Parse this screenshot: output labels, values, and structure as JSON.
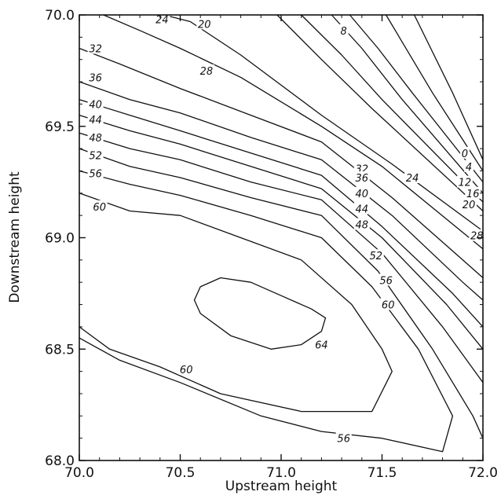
{
  "chart_data": {
    "type": "contour",
    "title": "",
    "xlabel": "Upstream height",
    "ylabel": "Downstream height",
    "xlim": [
      70.0,
      72.0
    ],
    "ylim": [
      68.0,
      70.0
    ],
    "x_ticks": [
      "70.0",
      "70.5",
      "71.0",
      "71.5",
      "72.0"
    ],
    "y_ticks": [
      "68.0",
      "68.5",
      "69.0",
      "69.5",
      "70.0"
    ],
    "grid": false,
    "contour_interval": 4,
    "contours": [
      {
        "level": 0,
        "points": [
          [
            71.66,
            70.0
          ],
          [
            71.85,
            69.65
          ],
          [
            72.0,
            69.35
          ]
        ]
      },
      {
        "level": 4,
        "points": [
          [
            71.52,
            70.0
          ],
          [
            71.75,
            69.65
          ],
          [
            72.0,
            69.3
          ]
        ]
      },
      {
        "level": 8,
        "points": [
          [
            71.34,
            70.0
          ],
          [
            71.48,
            69.85
          ],
          [
            71.65,
            69.65
          ],
          [
            72.0,
            69.25
          ]
        ]
      },
      {
        "level": 12,
        "points": [
          [
            71.25,
            70.0
          ],
          [
            71.4,
            69.85
          ],
          [
            71.6,
            69.62
          ],
          [
            72.0,
            69.2
          ]
        ]
      },
      {
        "level": 16,
        "points": [
          [
            71.1,
            70.0
          ],
          [
            71.3,
            69.82
          ],
          [
            71.5,
            69.62
          ],
          [
            72.0,
            69.16
          ]
        ]
      },
      {
        "level": 20,
        "points": [
          [
            70.98,
            70.0
          ],
          [
            71.2,
            69.8
          ],
          [
            71.45,
            69.58
          ],
          [
            72.0,
            69.12
          ]
        ]
      },
      {
        "level": 24,
        "points": [
          [
            70.42,
            70.0
          ],
          [
            70.55,
            69.97
          ],
          [
            70.8,
            69.82
          ],
          [
            71.2,
            69.55
          ],
          [
            71.55,
            69.33
          ],
          [
            72.0,
            69.03
          ]
        ]
      },
      {
        "level": 28,
        "points": [
          [
            70.12,
            70.0
          ],
          [
            70.3,
            69.93
          ],
          [
            70.5,
            69.85
          ],
          [
            70.8,
            69.72
          ],
          [
            71.2,
            69.5
          ],
          [
            71.5,
            69.32
          ],
          [
            72.0,
            68.95
          ]
        ]
      },
      {
        "level": 32,
        "points": [
          [
            70.0,
            69.85
          ],
          [
            70.2,
            69.78
          ],
          [
            70.5,
            69.67
          ],
          [
            70.85,
            69.55
          ],
          [
            71.2,
            69.43
          ],
          [
            71.55,
            69.18
          ],
          [
            71.9,
            68.9
          ],
          [
            72.0,
            68.82
          ]
        ]
      },
      {
        "level": 36,
        "points": [
          [
            70.0,
            69.7
          ],
          [
            70.25,
            69.62
          ],
          [
            70.5,
            69.56
          ],
          [
            70.85,
            69.45
          ],
          [
            71.2,
            69.35
          ],
          [
            71.55,
            69.1
          ],
          [
            71.9,
            68.8
          ],
          [
            72.0,
            68.72
          ]
        ]
      },
      {
        "level": 40,
        "points": [
          [
            70.0,
            69.62
          ],
          [
            70.25,
            69.55
          ],
          [
            70.5,
            69.48
          ],
          [
            70.85,
            69.38
          ],
          [
            71.2,
            69.28
          ],
          [
            71.5,
            69.05
          ],
          [
            71.85,
            68.75
          ],
          [
            72.0,
            68.6
          ]
        ]
      },
      {
        "level": 44,
        "points": [
          [
            70.0,
            69.55
          ],
          [
            70.25,
            69.48
          ],
          [
            70.5,
            69.42
          ],
          [
            70.85,
            69.32
          ],
          [
            71.2,
            69.22
          ],
          [
            71.5,
            69.0
          ],
          [
            71.82,
            68.7
          ],
          [
            72.0,
            68.5
          ]
        ]
      },
      {
        "level": 48,
        "points": [
          [
            70.0,
            69.47
          ],
          [
            70.25,
            69.4
          ],
          [
            70.5,
            69.35
          ],
          [
            70.85,
            69.25
          ],
          [
            71.2,
            69.17
          ],
          [
            71.5,
            68.93
          ],
          [
            71.8,
            68.6
          ],
          [
            72.0,
            68.35
          ]
        ]
      },
      {
        "level": 52,
        "points": [
          [
            70.0,
            69.4
          ],
          [
            70.25,
            69.32
          ],
          [
            70.5,
            69.27
          ],
          [
            70.85,
            69.18
          ],
          [
            71.2,
            69.1
          ],
          [
            71.48,
            68.85
          ],
          [
            71.75,
            68.5
          ],
          [
            71.95,
            68.2
          ],
          [
            72.0,
            68.1
          ]
        ]
      },
      {
        "level": 56,
        "points": [
          [
            70.0,
            69.3
          ],
          [
            70.25,
            69.24
          ],
          [
            70.5,
            69.19
          ],
          [
            70.85,
            69.1
          ],
          [
            71.2,
            69.0
          ],
          [
            71.45,
            68.78
          ],
          [
            71.68,
            68.5
          ],
          [
            71.85,
            68.2
          ],
          [
            71.8,
            68.04
          ],
          [
            71.5,
            68.1
          ],
          [
            71.2,
            68.13
          ],
          [
            70.9,
            68.2
          ],
          [
            70.5,
            68.35
          ],
          [
            70.2,
            68.45
          ],
          [
            70.0,
            68.55
          ]
        ]
      },
      {
        "level": 60,
        "points": [
          [
            70.0,
            69.2
          ],
          [
            70.25,
            69.12
          ],
          [
            70.5,
            69.1
          ],
          [
            70.8,
            69.0
          ],
          [
            71.1,
            68.9
          ],
          [
            71.35,
            68.7
          ],
          [
            71.5,
            68.5
          ],
          [
            71.55,
            68.4
          ],
          [
            71.45,
            68.22
          ],
          [
            71.1,
            68.22
          ],
          [
            70.7,
            68.3
          ],
          [
            70.4,
            68.42
          ],
          [
            70.15,
            68.5
          ],
          [
            70.0,
            68.6
          ]
        ]
      },
      {
        "level": 64,
        "points": [
          [
            70.57,
            68.72
          ],
          [
            70.6,
            68.78
          ],
          [
            70.7,
            68.82
          ],
          [
            70.85,
            68.8
          ],
          [
            71.0,
            68.74
          ],
          [
            71.15,
            68.68
          ],
          [
            71.22,
            68.64
          ],
          [
            71.2,
            68.58
          ],
          [
            71.1,
            68.52
          ],
          [
            70.95,
            68.5
          ],
          [
            70.75,
            68.56
          ],
          [
            70.6,
            68.66
          ],
          [
            70.57,
            68.72
          ]
        ],
        "closed": true
      },
      {
        "level": 0,
        "points": [
          [
            70.0,
            69.0
          ],
          [
            70.2,
            68.97
          ],
          [
            70.4,
            68.98
          ],
          [
            70.6,
            69.0
          ],
          [
            70.85,
            68.93
          ],
          [
            71.1,
            68.8
          ],
          [
            71.3,
            68.62
          ],
          [
            71.45,
            68.38
          ],
          [
            71.3,
            68.3
          ],
          [
            71.0,
            68.3
          ],
          [
            70.7,
            68.36
          ],
          [
            70.4,
            68.45
          ],
          [
            70.15,
            68.52
          ],
          [
            70.0,
            68.58
          ]
        ],
        "hidden": true
      }
    ],
    "labels": [
      {
        "text": "24",
        "x": 70.41,
        "y": 69.98
      },
      {
        "text": "20",
        "x": 70.62,
        "y": 69.96
      },
      {
        "text": "8",
        "x": 71.31,
        "y": 69.93
      },
      {
        "text": "32",
        "x": 70.08,
        "y": 69.85
      },
      {
        "text": "28",
        "x": 70.63,
        "y": 69.75
      },
      {
        "text": "36",
        "x": 70.08,
        "y": 69.72
      },
      {
        "text": "40",
        "x": 70.08,
        "y": 69.6
      },
      {
        "text": "44",
        "x": 70.08,
        "y": 69.53
      },
      {
        "text": "48",
        "x": 70.08,
        "y": 69.45
      },
      {
        "text": "52",
        "x": 70.08,
        "y": 69.37
      },
      {
        "text": "56",
        "x": 70.08,
        "y": 69.29
      },
      {
        "text": "60",
        "x": 70.1,
        "y": 69.14
      },
      {
        "text": "0",
        "x": 71.91,
        "y": 69.38
      },
      {
        "text": "4",
        "x": 71.93,
        "y": 69.32
      },
      {
        "text": "12",
        "x": 71.91,
        "y": 69.25
      },
      {
        "text": "16",
        "x": 71.95,
        "y": 69.2
      },
      {
        "text": "20",
        "x": 71.93,
        "y": 69.15
      },
      {
        "text": "32",
        "x": 71.4,
        "y": 69.31
      },
      {
        "text": "36",
        "x": 71.4,
        "y": 69.27
      },
      {
        "text": "24",
        "x": 71.65,
        "y": 69.27
      },
      {
        "text": "40",
        "x": 71.4,
        "y": 69.2
      },
      {
        "text": "44",
        "x": 71.4,
        "y": 69.13
      },
      {
        "text": "48",
        "x": 71.4,
        "y": 69.06
      },
      {
        "text": "28",
        "x": 71.97,
        "y": 69.01
      },
      {
        "text": "52",
        "x": 71.47,
        "y": 68.92
      },
      {
        "text": "56",
        "x": 71.52,
        "y": 68.81
      },
      {
        "text": "60",
        "x": 71.53,
        "y": 68.7
      },
      {
        "text": "64",
        "x": 71.2,
        "y": 68.52
      },
      {
        "text": "60",
        "x": 70.53,
        "y": 68.41
      },
      {
        "text": "56",
        "x": 71.31,
        "y": 68.1
      }
    ]
  }
}
